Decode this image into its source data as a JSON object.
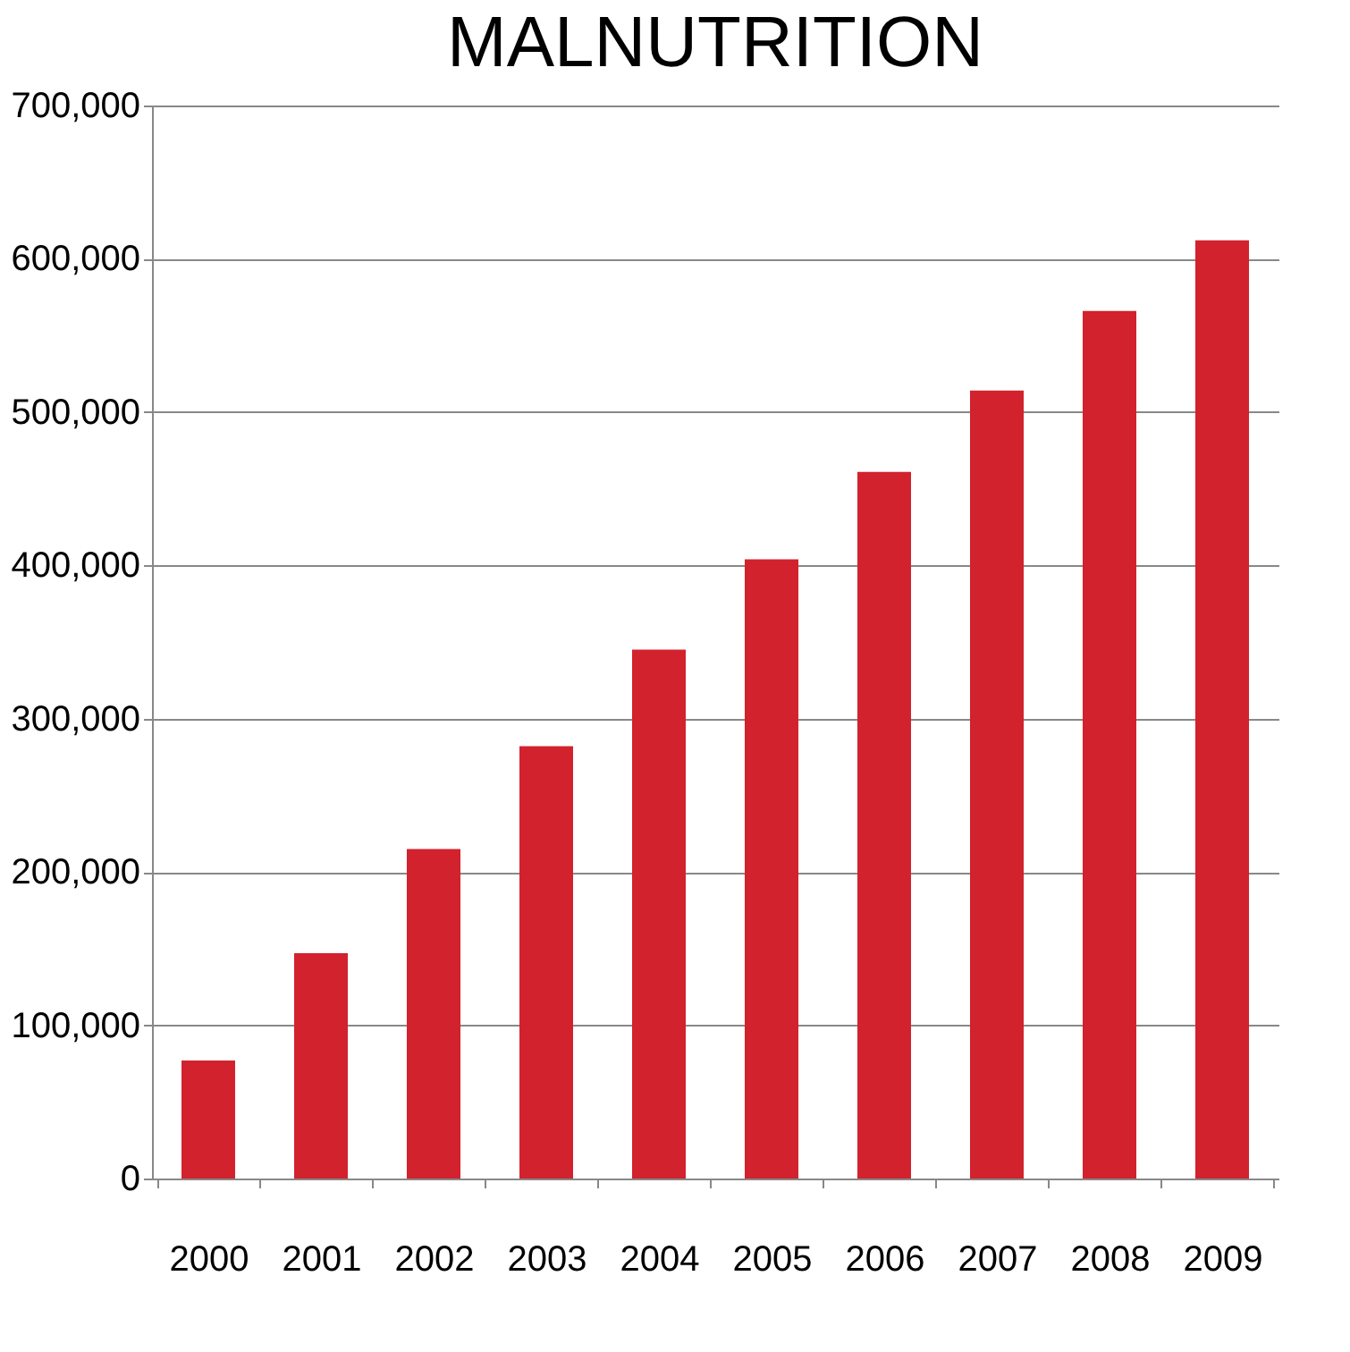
{
  "chart_data": {
    "type": "bar",
    "title": "MALNUTRITION",
    "categories": [
      "2000",
      "2001",
      "2002",
      "2003",
      "2004",
      "2005",
      "2006",
      "2007",
      "2008",
      "2009"
    ],
    "values": [
      77000,
      147000,
      215000,
      282000,
      345000,
      404000,
      461000,
      514000,
      566000,
      612000
    ],
    "color": "#d2222d",
    "ylim": [
      0,
      700000
    ],
    "yticks": [
      0,
      {
        "value": 100000,
        "label": "100,000"
      },
      {
        "value": 200000,
        "label": "200,000"
      },
      {
        "value": 300000,
        "label": "300,000"
      },
      {
        "value": 400000,
        "label": "400,000"
      },
      {
        "value": 500000,
        "label": "500,000"
      },
      {
        "value": 600000,
        "label": "600,000"
      },
      {
        "value": 700000,
        "label": "700,000"
      }
    ],
    "grid": "y"
  }
}
